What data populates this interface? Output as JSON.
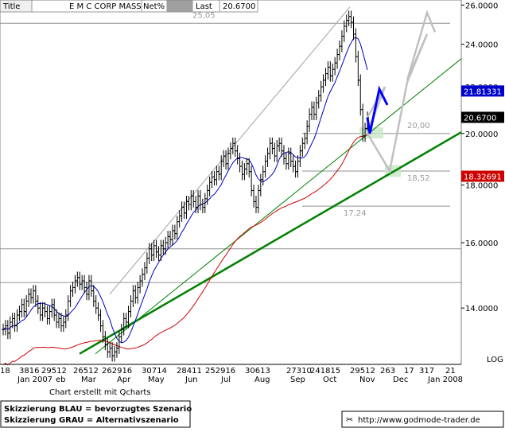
{
  "header": {
    "title_label": "Title",
    "symbol": "E M C CORP MASS",
    "netpct_label": "Net%",
    "last_label": "Last",
    "last_value": "20.6700"
  },
  "chart_data": {
    "type": "line",
    "title": "E M C CORP MASS",
    "ylim": [
      12.6,
      26.1
    ],
    "scale": "log",
    "y_ticks": [
      "26.0000",
      "24.0000",
      "22.0000",
      "20.0000",
      "18.0000",
      "16.0000",
      "14.0000"
    ],
    "y_tick_values": [
      26,
      24,
      22,
      20,
      18,
      16,
      14
    ],
    "x_date_labels": [
      "18",
      "3816",
      "29512",
      "26512",
      "262916",
      "30714",
      "28411",
      "252916",
      "30613",
      "27310",
      "241815",
      "29512",
      "263",
      "17",
      "317",
      "21"
    ],
    "x_month_labels": [
      "Jan 2007",
      "eb",
      "Mar",
      "Apr",
      "May",
      "Jun",
      "Jul",
      "Aug",
      "Sep",
      "Oct",
      "Nov",
      "Dec",
      "Jan 2008"
    ],
    "price_ohlc_daily_close": [
      13.4,
      13.5,
      13.3,
      13.6,
      13.7,
      13.5,
      13.8,
      13.9,
      14.1,
      13.9,
      14.2,
      14.4,
      14.3,
      14.5,
      14.2,
      14.0,
      13.8,
      14.0,
      13.9,
      13.7,
      13.9,
      14.1,
      13.8,
      13.6,
      13.7,
      13.5,
      13.6,
      13.8,
      14.2,
      14.5,
      14.6,
      14.8,
      14.9,
      14.7,
      14.8,
      14.6,
      14.4,
      14.8,
      14.5,
      14.2,
      14.0,
      13.8,
      13.5,
      13.2,
      13.0,
      12.8,
      12.9,
      12.7,
      12.8,
      12.9,
      13.2,
      13.4,
      13.7,
      13.6,
      13.9,
      14.2,
      14.5,
      14.3,
      14.6,
      14.8,
      15.0,
      15.2,
      15.5,
      15.8,
      15.6,
      15.9,
      15.7,
      15.6,
      15.9,
      15.8,
      16.0,
      16.2,
      16.1,
      16.4,
      16.3,
      16.7,
      16.9,
      17.2,
      17.0,
      17.4,
      17.3,
      17.6,
      17.4,
      17.2,
      17.6,
      17.3,
      17.2,
      17.5,
      17.8,
      18.1,
      18.3,
      18.2,
      18.5,
      18.4,
      18.9,
      19.1,
      18.8,
      19.2,
      19.4,
      19.6,
      19.3,
      19.0,
      18.7,
      18.4,
      18.6,
      18.8,
      18.5,
      17.8,
      17.4,
      17.2,
      17.8,
      18.2,
      18.5,
      18.9,
      19.2,
      19.6,
      19.4,
      19.1,
      19.5,
      19.6,
      19.3,
      19.0,
      18.8,
      19.2,
      18.9,
      18.7,
      18.5,
      18.9,
      19.3,
      19.6,
      19.8,
      20.3,
      20.8,
      21.1,
      20.8,
      21.3,
      21.6,
      22.0,
      22.3,
      22.6,
      22.9,
      22.5,
      22.8,
      23.1,
      23.5,
      23.9,
      24.4,
      24.9,
      25.2,
      25.4,
      25.1,
      24.5,
      23.4,
      22.3,
      21.0,
      19.9,
      20.2,
      20.67
    ],
    "series": [
      {
        "name": "",
        "color": "#000000",
        "kind": "price_bars"
      },
      {
        "name": "",
        "color": "#0000c8",
        "kind": "moving_average_short"
      },
      {
        "name": "",
        "color": "#d00000",
        "kind": "moving_average_long"
      }
    ],
    "horizontal_levels": [
      {
        "value": 25.05,
        "label": "25,05"
      },
      {
        "value": 20.0,
        "label": "20,00"
      },
      {
        "value": 18.52,
        "label": "18,52"
      },
      {
        "value": 17.24,
        "label": "17,24"
      },
      {
        "value": 15.8,
        "label": ""
      },
      {
        "value": 14.75,
        "label": ""
      }
    ],
    "right_axis_markers": [
      {
        "label": "21.81331",
        "value": 21.81331,
        "color": "#0000cc"
      },
      {
        "label": "20.6700",
        "value": 20.67,
        "color": "#000000"
      },
      {
        "label": "18.32691",
        "value": 18.32691,
        "color": "#cc0000"
      }
    ],
    "scenario_blue_path": [
      20.67,
      20.0,
      21.9,
      21.2
    ],
    "scenario_grey_path": [
      20.67,
      22.0,
      20.0,
      18.52,
      22.2,
      24.5,
      22.3,
      25.6,
      24.6
    ],
    "log_label": "LOG",
    "grid": false
  },
  "footer": {
    "credit": "Chart erstellt mit Qcharts",
    "legend_line1": "Skizzierung BLAU = bevorzugtes Szenario",
    "legend_line2": "Skizzierung GRAU = Alternativszenario",
    "website": "http://www.godmode-trader.de"
  },
  "colors": {
    "price": "#000000",
    "ma_short": "#0000c8",
    "ma_long": "#d00000",
    "trend_green": "#008000",
    "scenario_blue": "#0000ff",
    "scenario_grey": "#c0c0c0",
    "zone_green": "#c8e6c8"
  }
}
